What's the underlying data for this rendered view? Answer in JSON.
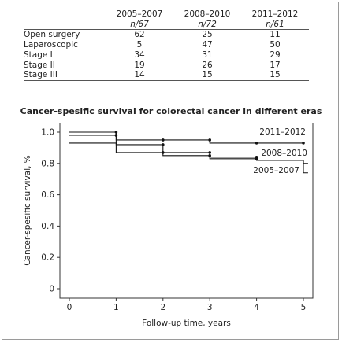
{
  "table": {
    "columns": [
      {
        "period": "2005–2007",
        "n": "n/67"
      },
      {
        "period": "2008–2010",
        "n": "n/72"
      },
      {
        "period": "2011–2012",
        "n": "n/61"
      }
    ],
    "rows": [
      {
        "label": "Open surgery",
        "values": [
          "62",
          "25",
          "11"
        ]
      },
      {
        "label": "Laparoscopic",
        "values": [
          "5",
          "47",
          "50"
        ]
      },
      {
        "label": "Stage I",
        "values": [
          "34",
          "31",
          "29"
        ]
      },
      {
        "label": "Stage II",
        "values": [
          "19",
          "26",
          "17"
        ]
      },
      {
        "label": "Stage III",
        "values": [
          "14",
          "15",
          "15"
        ]
      }
    ]
  },
  "chart_data": {
    "type": "line",
    "title": "Cancer-spesific survival for colorectal cancer in different eras",
    "xlabel": "Follow-up time, years",
    "ylabel": "Cancer-spesific survival, %",
    "xlim": [
      0,
      5
    ],
    "ylim": [
      0,
      1.0
    ],
    "xticks": [
      "0",
      "1",
      "2",
      "3",
      "4",
      "5"
    ],
    "yticks": [
      "0",
      "0.2",
      "0.4",
      "0.6",
      "0.8",
      "1.0"
    ],
    "grid": false,
    "series": [
      {
        "name": "2011–2012",
        "step": true,
        "x": [
          0,
          1,
          2,
          3,
          4,
          5,
          5
        ],
        "y": [
          0.98,
          0.95,
          0.95,
          0.93,
          0.93,
          0.93,
          0.93
        ],
        "censor_x": [
          1,
          2,
          3,
          4,
          5
        ]
      },
      {
        "name": "2008–2010",
        "step": true,
        "x": [
          0,
          1,
          2,
          3,
          4,
          5,
          5.1
        ],
        "y": [
          1.0,
          0.92,
          0.87,
          0.84,
          0.82,
          0.8,
          0.8
        ],
        "censor_x": [
          1,
          2,
          3,
          4
        ]
      },
      {
        "name": "2005–2007",
        "step": true,
        "x": [
          0,
          1,
          2,
          3,
          4,
          5,
          5.1
        ],
        "y": [
          0.93,
          0.87,
          0.85,
          0.83,
          0.82,
          0.74,
          0.74
        ],
        "censor_x": [
          2,
          3,
          4
        ]
      }
    ]
  }
}
